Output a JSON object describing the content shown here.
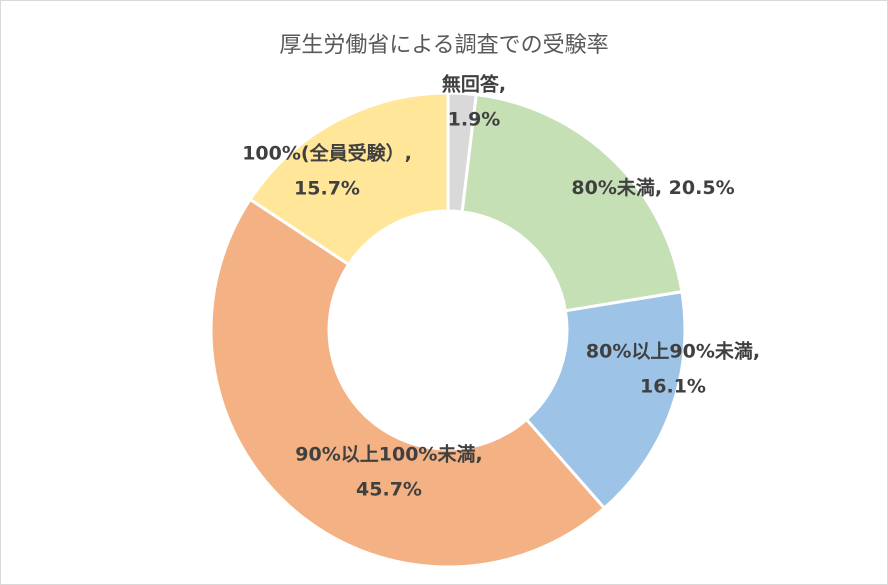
{
  "chart_data": {
    "type": "pie",
    "donut": true,
    "title": "厚生労働省による調査での受験率",
    "start_angle_deg": 0,
    "legend": "none",
    "slices": [
      {
        "name": "無回答",
        "value": 1.9,
        "label_lines": [
          "無回答,",
          "1.9%"
        ],
        "color": "#d9d9d9"
      },
      {
        "name": "80%未満",
        "value": 20.5,
        "label_lines": [
          "80%未満, 20.5%"
        ],
        "color": "#c5e0b4"
      },
      {
        "name": "80%以上90%未満",
        "value": 16.1,
        "label_lines": [
          "80%以上90%未満,",
          "16.1%"
        ],
        "color": "#9dc3e6"
      },
      {
        "name": "90%以上100%未満",
        "value": 45.7,
        "label_lines": [
          "90%以上100%未満,",
          "45.7%"
        ],
        "color": "#f4b183"
      },
      {
        "name": "100%(全員受験）",
        "value": 15.7,
        "label_lines": [
          "100%(全員受験）,",
          "15.7%"
        ],
        "color": "#ffe699"
      }
    ]
  }
}
